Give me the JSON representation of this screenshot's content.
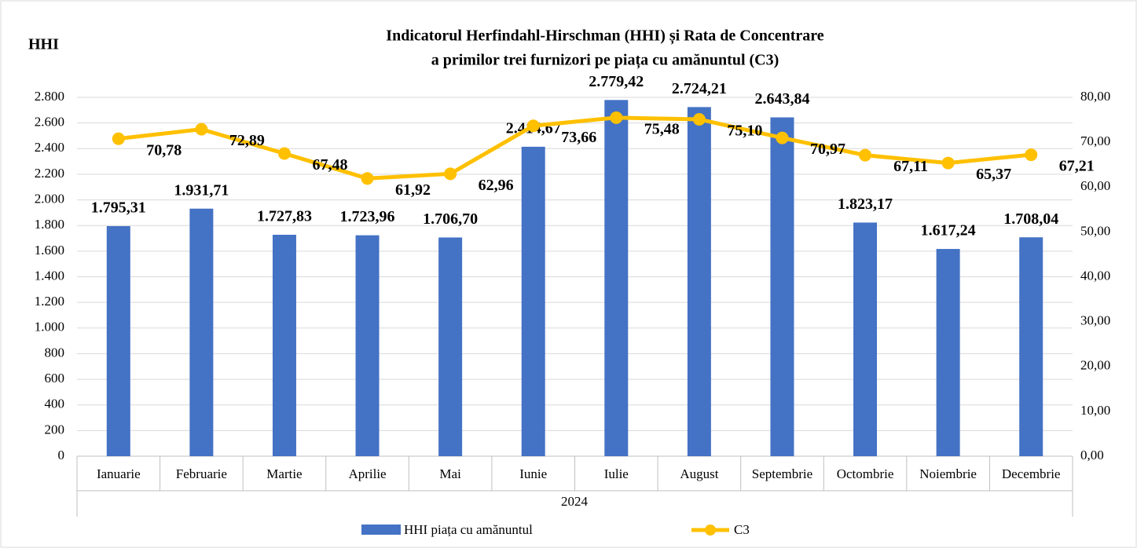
{
  "chart_data": {
    "type": "bar_line",
    "title": "Indicatorul Herfindahl-Hirschman (HHI) și Rata de Concentrare",
    "subtitle": "a primilor trei furnizori pe piața cu amănuntul (C3)",
    "ylabel": "HHI",
    "xlabel": "2024",
    "categories": [
      "Ianuarie",
      "Februarie",
      "Martie",
      "Aprilie",
      "Mai",
      "Iunie",
      "Iulie",
      "August",
      "Septembrie",
      "Octombrie",
      "Noiembrie",
      "Decembrie"
    ],
    "series": [
      {
        "name": "HHI piața cu amănuntul",
        "type": "bar",
        "color": "#4472c4",
        "values": [
          1795.31,
          1931.71,
          1727.83,
          1723.96,
          1706.7,
          2414.67,
          2779.42,
          2724.21,
          2643.84,
          1823.17,
          1617.24,
          1708.04
        ],
        "value_labels": [
          "1.795,31",
          "1.931,71",
          "1.727,83",
          "1.723,96",
          "1.706,70",
          "2.414,67",
          "2.779,42",
          "2.724,21",
          "2.643,84",
          "1.823,17",
          "1.617,24",
          "1.708,04"
        ]
      },
      {
        "name": "C3",
        "type": "line",
        "axis": "y2",
        "color": "#ffc000",
        "values": [
          70.78,
          72.89,
          67.48,
          61.92,
          62.96,
          73.66,
          75.48,
          75.1,
          70.97,
          67.11,
          65.37,
          67.21
        ],
        "value_labels": [
          "70,78",
          "72,89",
          "67,48",
          "61,92",
          "62,96",
          "73,66",
          "75,48",
          "75,10",
          "70,97",
          "67,11",
          "65,37",
          "67,21"
        ]
      }
    ],
    "ylim": [
      0,
      2800
    ],
    "yticks": [
      0,
      200,
      400,
      600,
      800,
      {
        "value": 1000,
        "label": "1.000"
      },
      {
        "value": 1200,
        "label": "1.200"
      },
      {
        "value": 1400,
        "label": "1.400"
      },
      {
        "value": 1600,
        "label": "1.600"
      },
      {
        "value": 1800,
        "label": "1.800"
      },
      {
        "value": 2000,
        "label": "2.000"
      },
      {
        "value": 2200,
        "label": "2.200"
      },
      {
        "value": 2400,
        "label": "2.400"
      },
      {
        "value": 2600,
        "label": "2.600"
      },
      {
        "value": 2800,
        "label": "2.800"
      }
    ],
    "y2lim": [
      0,
      80
    ],
    "y2ticks": [
      {
        "value": 0,
        "label": "0,00"
      },
      {
        "value": 10,
        "label": "10,00"
      },
      {
        "value": 20,
        "label": "20,00"
      },
      {
        "value": 30,
        "label": "30,00"
      },
      {
        "value": 40,
        "label": "40,00"
      },
      {
        "value": 50,
        "label": "50,00"
      },
      {
        "value": 60,
        "label": "60,00"
      },
      {
        "value": 70,
        "label": "70,00"
      },
      {
        "value": 80,
        "label": "80,00"
      }
    ],
    "grid": true
  }
}
